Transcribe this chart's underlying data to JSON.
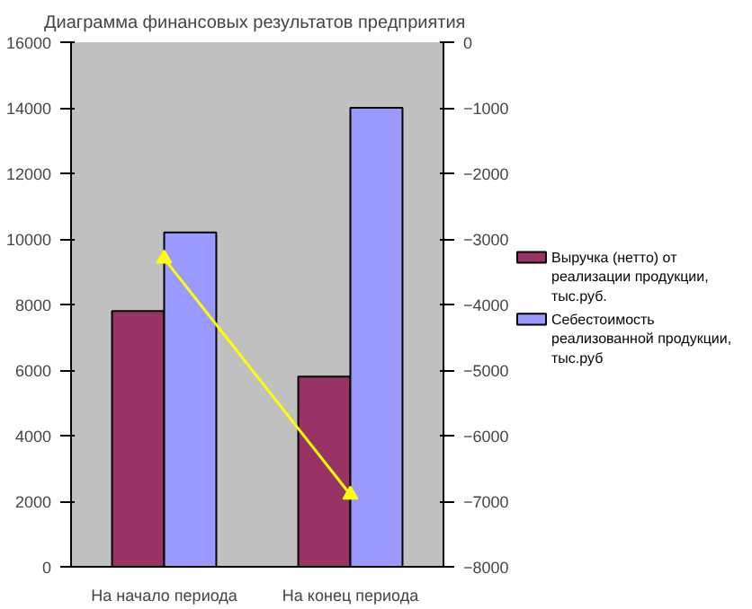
{
  "chart_data": {
    "type": "bar",
    "title": "Диаграмма финансовых результатов  предприятия",
    "categories": [
      "На начало периода",
      "На конец периода"
    ],
    "series": [
      {
        "name": "Выручка (нетто) от реализации продукции, тыс.руб.",
        "color": "#993366",
        "values": [
          7800,
          5800
        ]
      },
      {
        "name": "Себестоимость реализованной продукции, тыс.руб",
        "color": "#9999ff",
        "values": [
          10200,
          14000
        ]
      },
      {
        "type": "line",
        "axis": "y2",
        "color": "#ffff00",
        "marker": "triangle",
        "values": [
          -3300,
          -6900
        ]
      }
    ],
    "ylim": [
      0,
      16000
    ],
    "yticks": [
      0,
      2000,
      4000,
      6000,
      8000,
      10000,
      12000,
      14000,
      16000
    ],
    "y2lim": [
      -8000,
      0
    ],
    "y2ticks": [
      -8000,
      -7000,
      -6000,
      -5000,
      -4000,
      -3000,
      -2000,
      -1000,
      0
    ],
    "grid": false,
    "legend": "right"
  }
}
